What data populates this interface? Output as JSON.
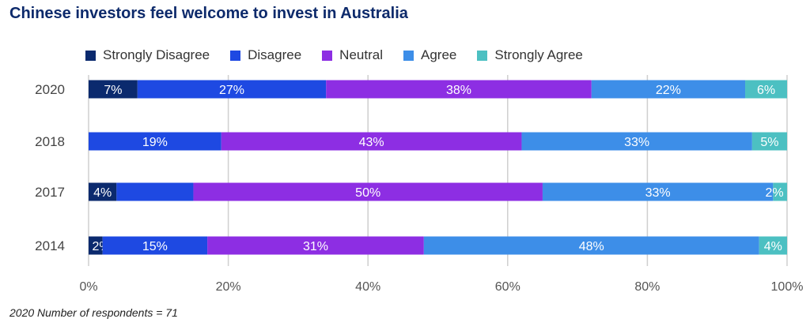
{
  "title": "Chinese investors feel welcome to invest in Australia",
  "footnote": "2020 Number of respondents = 71",
  "chart_data": {
    "type": "bar",
    "orientation": "horizontal",
    "stacked": true,
    "categories": [
      "2020",
      "2018",
      "2017",
      "2014"
    ],
    "series": [
      {
        "name": "Strongly Disagree",
        "color": "#0b2a6e",
        "values": [
          7,
          0,
          4,
          2
        ],
        "labels": [
          "7%",
          "",
          "4%",
          "2%"
        ]
      },
      {
        "name": "Disagree",
        "color": "#1e49e2",
        "values": [
          27,
          19,
          11,
          15
        ],
        "labels": [
          "27%",
          "19%",
          "",
          "15%"
        ]
      },
      {
        "name": "Neutral",
        "color": "#8d2ee3",
        "values": [
          38,
          43,
          50,
          31
        ],
        "labels": [
          "38%",
          "43%",
          "50%",
          "31%"
        ]
      },
      {
        "name": "Agree",
        "color": "#3d8ee8",
        "values": [
          22,
          33,
          33,
          48
        ],
        "labels": [
          "22%",
          "33%",
          "33%",
          "48%"
        ]
      },
      {
        "name": "Strongly Agree",
        "color": "#4cc0c2",
        "values": [
          6,
          5,
          2,
          4
        ],
        "labels": [
          "6%",
          "5%",
          "2%",
          "4%"
        ]
      }
    ],
    "xlim": [
      0,
      100
    ],
    "x_ticks": [
      "0%",
      "20%",
      "40%",
      "60%",
      "80%",
      "100%"
    ],
    "grid": true,
    "legend_position": "top"
  }
}
